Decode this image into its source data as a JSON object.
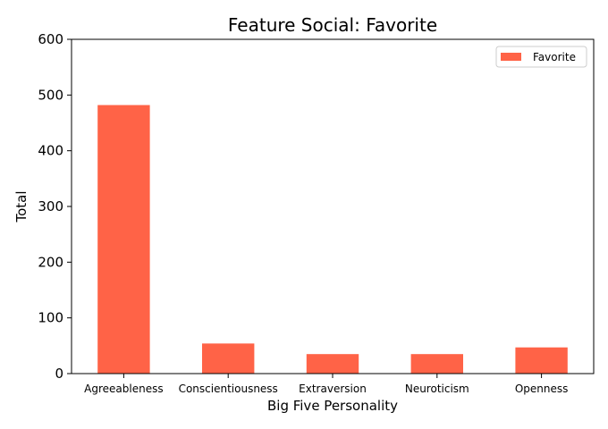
{
  "chart_data": {
    "type": "bar",
    "title": "Feature Social: Favorite",
    "xlabel": "Big Five Personality",
    "ylabel": "Total",
    "categories": [
      "Agreeableness",
      "Conscientiousness",
      "Extraversion",
      "Neuroticism",
      "Openness"
    ],
    "series": [
      {
        "name": "Favorite",
        "values": [
          482,
          54,
          35,
          35,
          47
        ],
        "color": "#ff6347"
      }
    ],
    "ylim": [
      0,
      600
    ],
    "yticks": [
      0,
      100,
      200,
      300,
      400,
      500,
      600
    ],
    "grid": false,
    "legend_position": "top-right"
  }
}
